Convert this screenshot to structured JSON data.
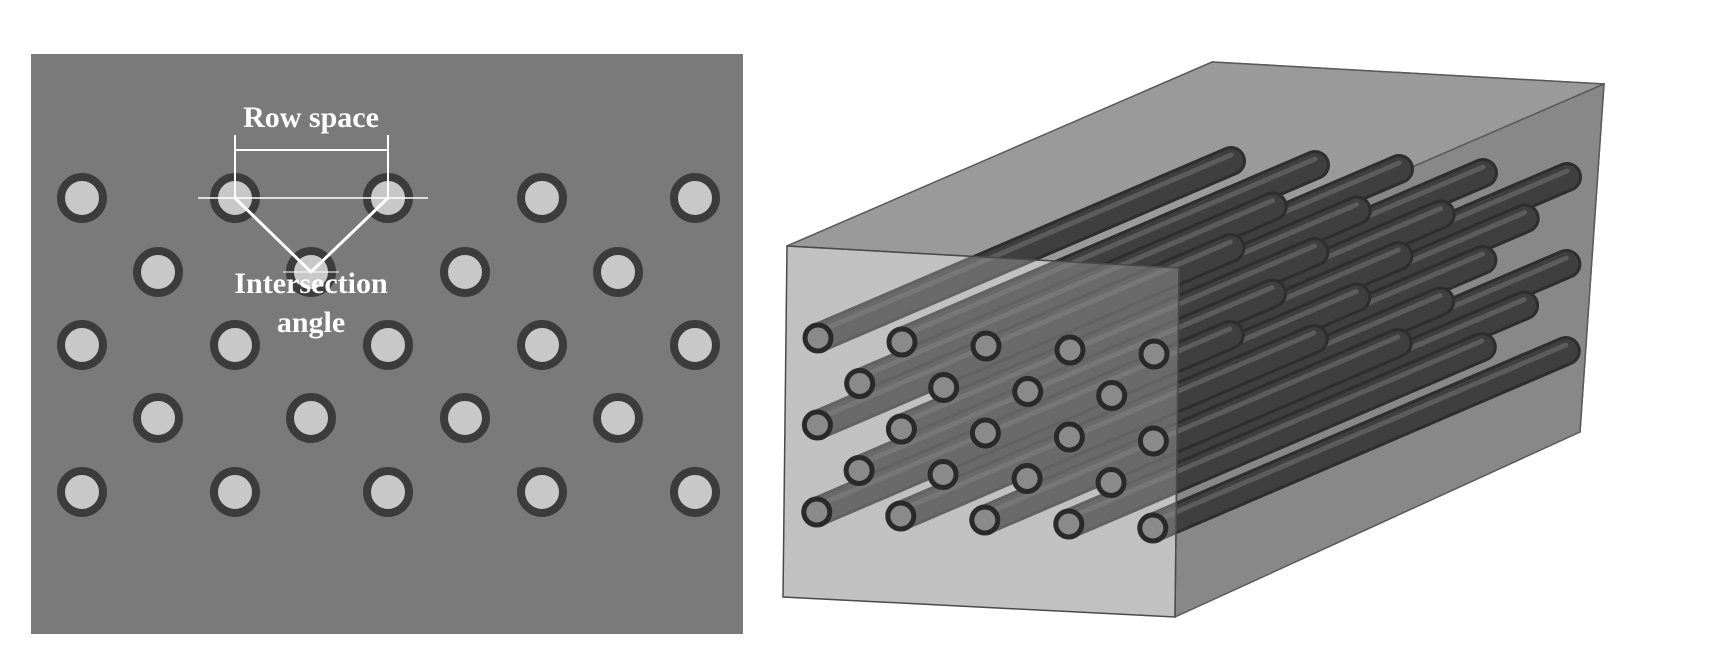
{
  "left_panel": {
    "label_row_space": "Row space",
    "label_intersection_line1": "Intersection",
    "label_intersection_line2": "angle",
    "panel_color": "#7a7a7a",
    "hole_fill": "#c8c8c8",
    "hole_ring": "#3c3c3c",
    "annotation_color": "#ffffff"
  },
  "right_panel": {
    "box_color": "#8e8e8e",
    "tube_color": "#3f3f3f",
    "tube_end_fill": "#8a8a8a"
  }
}
